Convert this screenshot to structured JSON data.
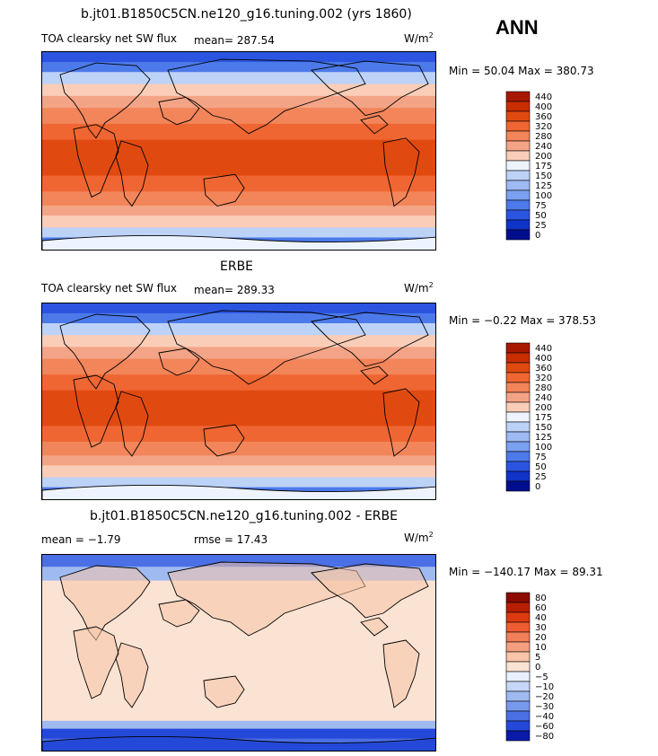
{
  "season": "ANN",
  "panels": [
    {
      "id": "model",
      "title": "b.jt01.B1850C5CN.ne120_g16.tuning.002 (yrs 1860)",
      "variable": "TOA clearsky net SW flux",
      "mean_text": "mean= 287.54",
      "rmse_text": "",
      "units": "W/m",
      "units_exp": "2",
      "minmax_text": "Min =  50.04 Max = 380.73"
    },
    {
      "id": "obs",
      "title": "ERBE",
      "variable": "TOA clearsky net SW flux",
      "mean_text": "mean= 289.33",
      "rmse_text": "",
      "units": "W/m",
      "units_exp": "2",
      "minmax_text": "Min =  −0.22 Max = 378.53"
    },
    {
      "id": "diff",
      "title": "b.jt01.B1850C5CN.ne120_g16.tuning.002 - ERBE",
      "variable": "",
      "mean_text": "mean =   −1.79",
      "rmse_text": "rmse =   17.43",
      "units": "W/m",
      "units_exp": "2",
      "minmax_text": "Min = −140.17 Max =  89.31"
    }
  ],
  "chart_data": [
    {
      "type": "heatmap",
      "title": "b.jt01.B1850C5CN.ne120_g16.tuning.002 (yrs 1860)",
      "subtitle": "TOA clearsky net SW flux",
      "mean": 287.54,
      "min": 50.04,
      "max": 380.73,
      "units": "W/m^2",
      "colorbar_levels": [
        "440",
        "400",
        "360",
        "320",
        "280",
        "240",
        "200",
        "175",
        "150",
        "125",
        "100",
        "75",
        "50",
        "25",
        "0"
      ],
      "colorbar_colors": [
        "#a81800",
        "#c92d00",
        "#e04a10",
        "#ef6632",
        "#f2855a",
        "#f4a486",
        "#f9cdb8",
        "#eef4ff",
        "#bcd2f7",
        "#9dbaf2",
        "#7aa0ef",
        "#4d7aea",
        "#2b55e0",
        "#1033c8",
        "#000e8e"
      ]
    },
    {
      "type": "heatmap",
      "title": "ERBE",
      "subtitle": "TOA clearsky net SW flux",
      "mean": 289.33,
      "min": -0.22,
      "max": 378.53,
      "units": "W/m^2",
      "colorbar_levels": [
        "440",
        "400",
        "360",
        "320",
        "280",
        "240",
        "200",
        "175",
        "150",
        "125",
        "100",
        "75",
        "50",
        "25",
        "0"
      ],
      "colorbar_colors": [
        "#a81800",
        "#c92d00",
        "#e04a10",
        "#ef6632",
        "#f2855a",
        "#f4a486",
        "#f9cdb8",
        "#eef4ff",
        "#bcd2f7",
        "#9dbaf2",
        "#7aa0ef",
        "#4d7aea",
        "#2b55e0",
        "#1033c8",
        "#000e8e"
      ]
    },
    {
      "type": "heatmap",
      "title": "b.jt01.B1850C5CN.ne120_g16.tuning.002 - ERBE",
      "mean": -1.79,
      "rmse": 17.43,
      "min": -140.17,
      "max": 89.31,
      "units": "W/m^2",
      "colorbar_levels": [
        "80",
        "60",
        "40",
        "30",
        "20",
        "10",
        "5",
        "0",
        "−5",
        "−10",
        "−20",
        "−30",
        "−40",
        "−60",
        "−80"
      ],
      "colorbar_colors": [
        "#8c0a00",
        "#b81e00",
        "#dd3a10",
        "#ee5c32",
        "#f17f58",
        "#f4a07e",
        "#f9c4a8",
        "#fbe3d3",
        "#e9f0fd",
        "#c5d6f7",
        "#9fbaf1",
        "#7799ec",
        "#4b6fe4",
        "#2449d8",
        "#0a1aa8"
      ]
    }
  ]
}
